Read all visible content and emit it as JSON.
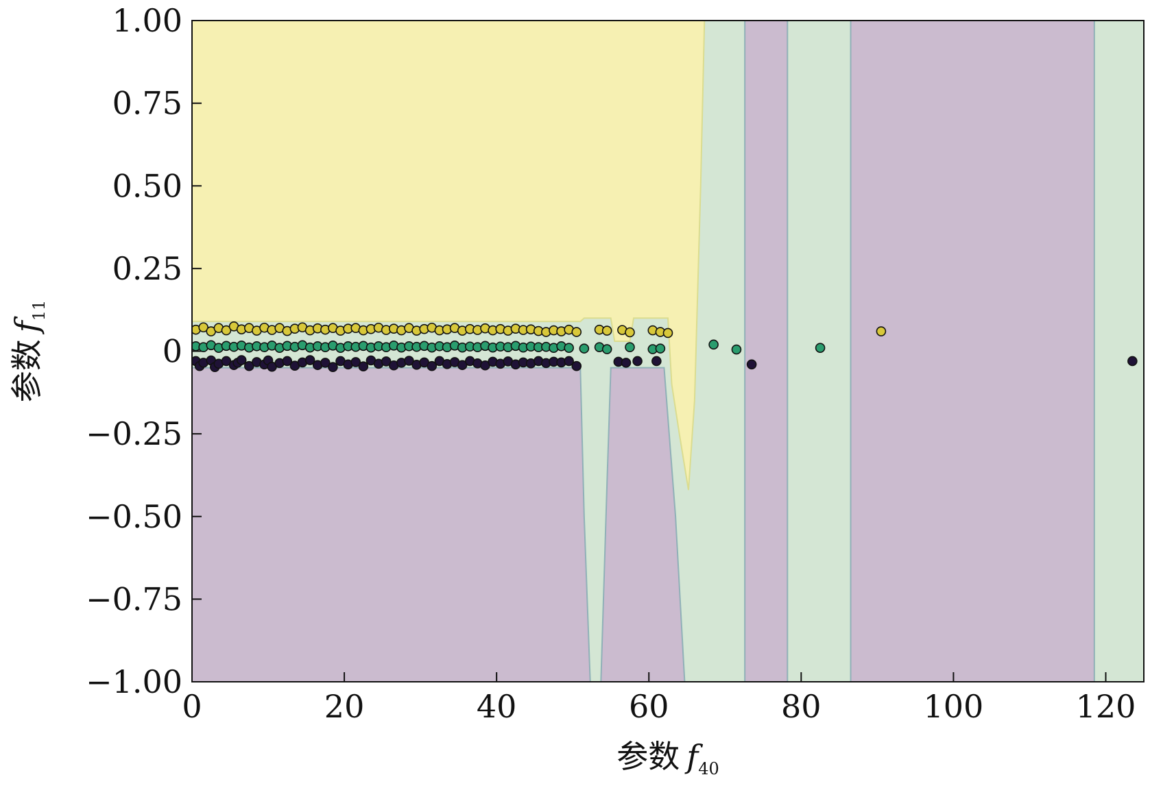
{
  "chart_data": {
    "type": "scatter",
    "title": "",
    "xlabel": {
      "prefix": "参数",
      "var": "f",
      "sub": "40"
    },
    "ylabel": {
      "prefix": "参数",
      "var": "f",
      "sub": "11"
    },
    "xlim": [
      0,
      125
    ],
    "ylim": [
      -1.0,
      1.0
    ],
    "x_ticks": [
      0,
      20,
      40,
      60,
      80,
      100,
      120
    ],
    "x_tick_labels": [
      "0",
      "20",
      "40",
      "60",
      "80",
      "100",
      "120"
    ],
    "y_ticks": [
      1.0,
      0.75,
      0.5,
      0.25,
      0,
      -0.25,
      -0.5,
      -0.75,
      -1.0
    ],
    "y_tick_labels": [
      "1.00",
      "0.75",
      "0.50",
      "0.25",
      "0",
      "−0.25",
      "−0.50",
      "−0.75",
      "−1.00"
    ],
    "grid": false,
    "legend": "none",
    "classes": [
      {
        "point_color": "#1f1236",
        "region_color": "#cbbbcf"
      },
      {
        "point_color": "#2a9d6e",
        "region_color": "#d4e6d4"
      },
      {
        "point_color": "#d8c83a",
        "region_color": "#f6f0b2"
      }
    ],
    "decision_regions": {
      "lower_class": 0,
      "upper_class": 2,
      "middle_class": 1,
      "boundary_lower": [
        [
          0,
          -0.05
        ],
        [
          49,
          -0.05
        ],
        [
          51,
          -0.05
        ],
        [
          51.5,
          -0.5
        ],
        [
          52.3,
          -1.0
        ],
        [
          53.7,
          -1.0
        ],
        [
          54.5,
          -0.4
        ],
        [
          55.0,
          -0.05
        ],
        [
          58.0,
          -0.05
        ],
        [
          62.0,
          -0.05
        ],
        [
          62.5,
          -0.2
        ],
        [
          63.5,
          -0.5
        ],
        [
          64.7,
          -1.0
        ],
        [
          72.6,
          -1.0
        ],
        [
          72.6,
          1.0
        ],
        [
          78.2,
          1.0
        ],
        [
          78.2,
          -1.0
        ],
        [
          86.5,
          -1.0
        ],
        [
          86.5,
          1.0
        ],
        [
          118.5,
          1.0
        ],
        [
          118.5,
          -1.0
        ],
        [
          125,
          -1.0
        ]
      ],
      "boundary_upper": [
        [
          0,
          0.09
        ],
        [
          51,
          0.09
        ],
        [
          51.5,
          0.1
        ],
        [
          55,
          0.1
        ],
        [
          55.5,
          0.03
        ],
        [
          57.5,
          0.03
        ],
        [
          58.0,
          0.1
        ],
        [
          62.5,
          0.1
        ],
        [
          63.0,
          -0.1
        ],
        [
          64.0,
          -0.25
        ],
        [
          65.2,
          -0.42
        ],
        [
          66.0,
          -0.15
        ],
        [
          66.8,
          0.5
        ],
        [
          67.3,
          1.0
        ]
      ]
    },
    "series": [
      {
        "class": 2,
        "points": [
          [
            0.5,
            0.065
          ],
          [
            1.5,
            0.072
          ],
          [
            2.5,
            0.06
          ],
          [
            3.5,
            0.07
          ],
          [
            4.5,
            0.063
          ],
          [
            5.5,
            0.075
          ],
          [
            6.5,
            0.066
          ],
          [
            7.5,
            0.07
          ],
          [
            8.5,
            0.062
          ],
          [
            9.5,
            0.071
          ],
          [
            10.5,
            0.064
          ],
          [
            11.5,
            0.07
          ],
          [
            12.5,
            0.061
          ],
          [
            13.5,
            0.068
          ],
          [
            14.5,
            0.072
          ],
          [
            15.5,
            0.063
          ],
          [
            16.5,
            0.069
          ],
          [
            17.5,
            0.065
          ],
          [
            18.5,
            0.07
          ],
          [
            19.5,
            0.062
          ],
          [
            20.5,
            0.068
          ],
          [
            21.5,
            0.07
          ],
          [
            22.5,
            0.063
          ],
          [
            23.5,
            0.067
          ],
          [
            24.5,
            0.071
          ],
          [
            25.5,
            0.064
          ],
          [
            26.5,
            0.068
          ],
          [
            27.5,
            0.063
          ],
          [
            28.5,
            0.07
          ],
          [
            29.5,
            0.062
          ],
          [
            30.5,
            0.067
          ],
          [
            31.5,
            0.071
          ],
          [
            32.5,
            0.063
          ],
          [
            33.5,
            0.066
          ],
          [
            34.5,
            0.07
          ],
          [
            35.5,
            0.062
          ],
          [
            36.5,
            0.067
          ],
          [
            37.5,
            0.064
          ],
          [
            38.5,
            0.069
          ],
          [
            39.5,
            0.063
          ],
          [
            40.5,
            0.067
          ],
          [
            41.5,
            0.062
          ],
          [
            42.5,
            0.068
          ],
          [
            43.5,
            0.064
          ],
          [
            44.5,
            0.066
          ],
          [
            45.5,
            0.061
          ],
          [
            46.5,
            0.058
          ],
          [
            47.5,
            0.063
          ],
          [
            48.5,
            0.06
          ],
          [
            49.5,
            0.065
          ],
          [
            50.5,
            0.058
          ],
          [
            53.5,
            0.065
          ],
          [
            54.5,
            0.062
          ],
          [
            56.5,
            0.064
          ],
          [
            57.5,
            0.057
          ],
          [
            60.5,
            0.063
          ],
          [
            61.5,
            0.058
          ],
          [
            62.5,
            0.055
          ],
          [
            90.5,
            0.06
          ]
        ]
      },
      {
        "class": 1,
        "points": [
          [
            0.5,
            0.015
          ],
          [
            1.5,
            0.012
          ],
          [
            2.5,
            0.018
          ],
          [
            3.5,
            0.01
          ],
          [
            4.5,
            0.016
          ],
          [
            5.5,
            0.013
          ],
          [
            6.5,
            0.017
          ],
          [
            7.5,
            0.011
          ],
          [
            8.5,
            0.015
          ],
          [
            9.5,
            0.012
          ],
          [
            10.5,
            0.017
          ],
          [
            11.5,
            0.01
          ],
          [
            12.5,
            0.016
          ],
          [
            13.5,
            0.013
          ],
          [
            14.5,
            0.018
          ],
          [
            15.5,
            0.011
          ],
          [
            16.5,
            0.015
          ],
          [
            17.5,
            0.012
          ],
          [
            18.5,
            0.017
          ],
          [
            19.5,
            0.01
          ],
          [
            20.5,
            0.015
          ],
          [
            21.5,
            0.013
          ],
          [
            22.5,
            0.016
          ],
          [
            23.5,
            0.011
          ],
          [
            24.5,
            0.015
          ],
          [
            25.5,
            0.012
          ],
          [
            26.5,
            0.017
          ],
          [
            27.5,
            0.011
          ],
          [
            28.5,
            0.015
          ],
          [
            29.5,
            0.013
          ],
          [
            30.5,
            0.016
          ],
          [
            31.5,
            0.011
          ],
          [
            32.5,
            0.015
          ],
          [
            33.5,
            0.012
          ],
          [
            34.5,
            0.017
          ],
          [
            35.5,
            0.011
          ],
          [
            36.5,
            0.014
          ],
          [
            37.5,
            0.012
          ],
          [
            38.5,
            0.016
          ],
          [
            39.5,
            0.011
          ],
          [
            40.5,
            0.014
          ],
          [
            41.5,
            0.012
          ],
          [
            42.5,
            0.016
          ],
          [
            43.5,
            0.011
          ],
          [
            44.5,
            0.014
          ],
          [
            45.5,
            0.012
          ],
          [
            46.5,
            0.013
          ],
          [
            47.5,
            0.01
          ],
          [
            48.5,
            0.015
          ],
          [
            49.5,
            0.01
          ],
          [
            51.5,
            0.008
          ],
          [
            53.5,
            0.012
          ],
          [
            54.5,
            0.006
          ],
          [
            57.5,
            0.012
          ],
          [
            60.5,
            0.006
          ],
          [
            61.5,
            0.008
          ],
          [
            68.5,
            0.02
          ],
          [
            71.5,
            0.005
          ],
          [
            82.5,
            0.01
          ]
        ]
      },
      {
        "class": 0,
        "points": [
          [
            0.5,
            -0.03
          ],
          [
            1.0,
            -0.045
          ],
          [
            1.5,
            -0.035
          ],
          [
            2.5,
            -0.028
          ],
          [
            3.0,
            -0.048
          ],
          [
            3.5,
            -0.038
          ],
          [
            4.5,
            -0.03
          ],
          [
            5.5,
            -0.042
          ],
          [
            6.0,
            -0.035
          ],
          [
            6.5,
            -0.027
          ],
          [
            7.5,
            -0.045
          ],
          [
            8.5,
            -0.033
          ],
          [
            9.5,
            -0.04
          ],
          [
            10.0,
            -0.028
          ],
          [
            10.5,
            -0.047
          ],
          [
            11.5,
            -0.036
          ],
          [
            12.5,
            -0.03
          ],
          [
            13.5,
            -0.044
          ],
          [
            14.5,
            -0.034
          ],
          [
            15.5,
            -0.027
          ],
          [
            16.5,
            -0.042
          ],
          [
            17.5,
            -0.035
          ],
          [
            18.5,
            -0.048
          ],
          [
            19.5,
            -0.03
          ],
          [
            20.5,
            -0.04
          ],
          [
            21.5,
            -0.033
          ],
          [
            22.5,
            -0.046
          ],
          [
            23.5,
            -0.028
          ],
          [
            24.5,
            -0.038
          ],
          [
            25.5,
            -0.031
          ],
          [
            26.5,
            -0.043
          ],
          [
            27.5,
            -0.035
          ],
          [
            28.5,
            -0.029
          ],
          [
            29.5,
            -0.041
          ],
          [
            30.5,
            -0.034
          ],
          [
            31.5,
            -0.045
          ],
          [
            32.5,
            -0.03
          ],
          [
            33.5,
            -0.039
          ],
          [
            34.5,
            -0.033
          ],
          [
            35.5,
            -0.042
          ],
          [
            36.5,
            -0.03
          ],
          [
            37.5,
            -0.037
          ],
          [
            38.5,
            -0.043
          ],
          [
            39.5,
            -0.032
          ],
          [
            40.5,
            -0.038
          ],
          [
            41.5,
            -0.031
          ],
          [
            42.5,
            -0.04
          ],
          [
            43.5,
            -0.034
          ],
          [
            44.5,
            -0.037
          ],
          [
            45.5,
            -0.03
          ],
          [
            46.5,
            -0.036
          ],
          [
            47.5,
            -0.032
          ],
          [
            48.5,
            -0.034
          ],
          [
            49.5,
            -0.03
          ],
          [
            50.5,
            -0.045
          ],
          [
            56.0,
            -0.032
          ],
          [
            57.0,
            -0.035
          ],
          [
            58.5,
            -0.03
          ],
          [
            61.0,
            -0.03
          ],
          [
            73.5,
            -0.04
          ],
          [
            123.5,
            -0.03
          ]
        ]
      }
    ]
  }
}
